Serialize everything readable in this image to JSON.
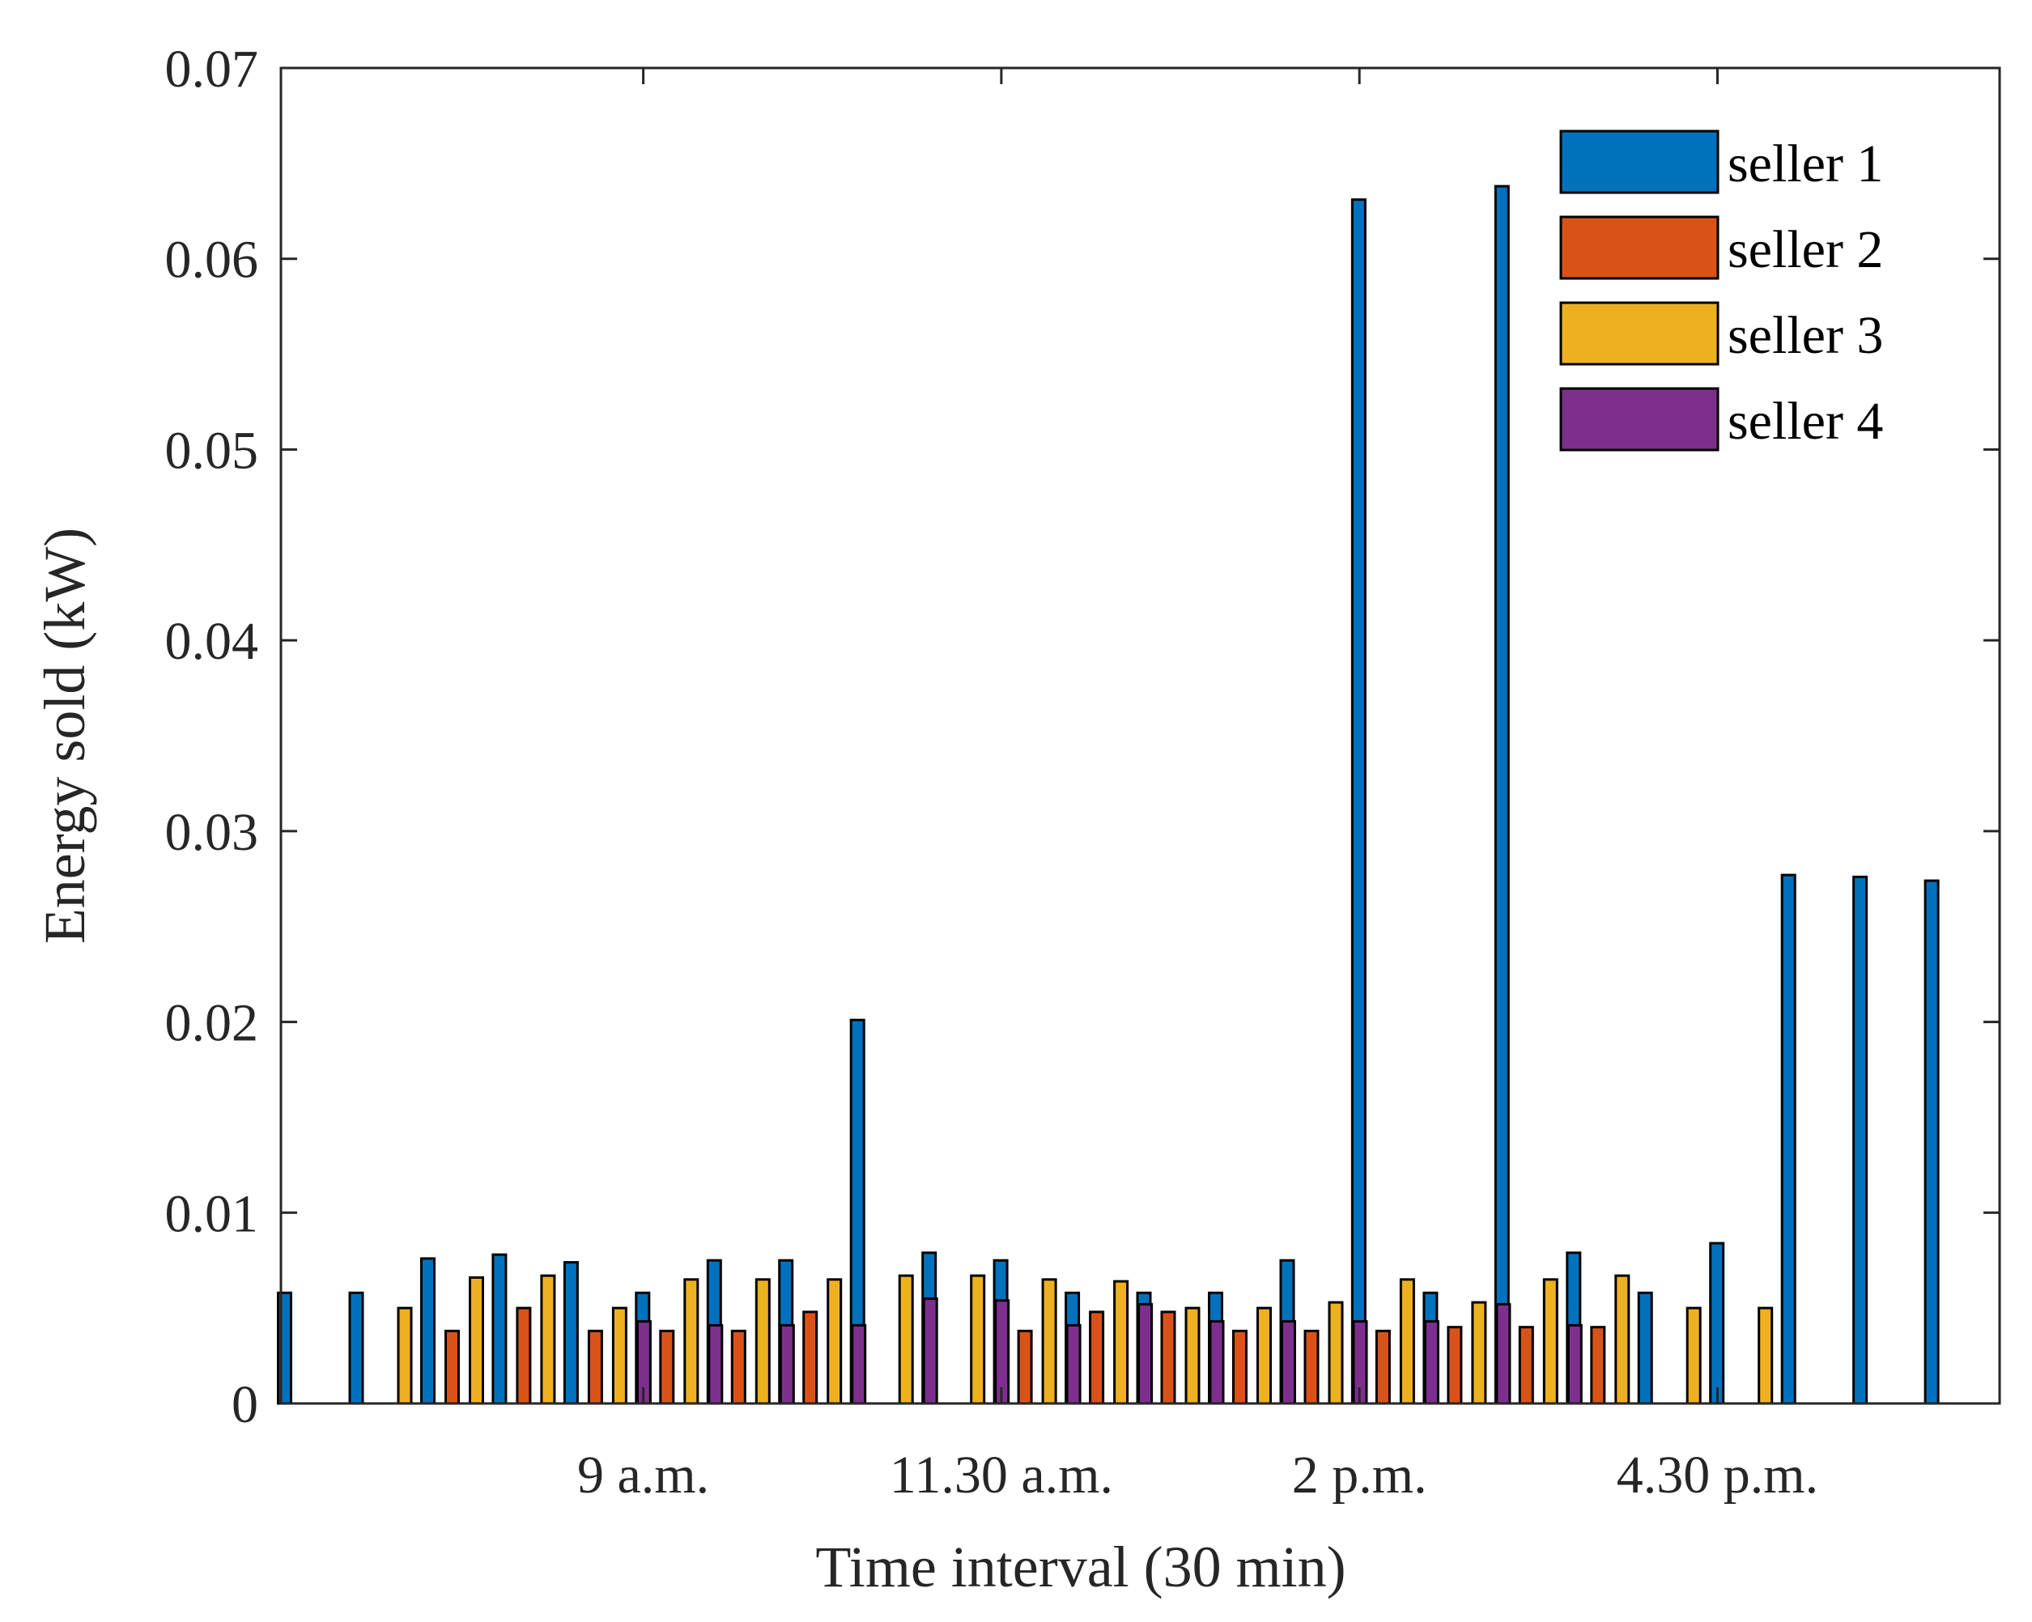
{
  "chart_data": {
    "type": "bar",
    "xlabel": "Time interval (30 min)",
    "ylabel": "Energy sold (kW)",
    "ylim": [
      0,
      0.07
    ],
    "yticks": [
      "0",
      "0.01",
      "0.02",
      "0.03",
      "0.04",
      "0.05",
      "0.06",
      "0.07"
    ],
    "xtick_labels": [
      {
        "label": "9 a.m.",
        "index": 4.5
      },
      {
        "label": "11.30 a.m.",
        "index": 9.5
      },
      {
        "label": "2 p.m.",
        "index": 14.5
      },
      {
        "label": "4.30 p.m.",
        "index": 19.5
      }
    ],
    "legend_position": "top-right",
    "n_intervals": 24,
    "series": [
      {
        "name": "seller 1",
        "color": "#0072BD",
        "values": [
          0.0058,
          0.0058,
          0.0076,
          0.0078,
          0.0074,
          0.0058,
          0.0075,
          0.0075,
          0.0201,
          0.0079,
          0.0075,
          0.0058,
          0.0058,
          0.0058,
          0.0075,
          0.0631,
          0.0058,
          0.0638,
          0.0079,
          0.0058,
          0.0084,
          0.0277,
          0.0276,
          0.0274
        ]
      },
      {
        "name": "seller 2",
        "color": "#D95319",
        "values": [
          0,
          0,
          0.0038,
          0.005,
          0.0038,
          0.0038,
          0.0038,
          0.0048,
          0,
          0,
          0.0038,
          0.0048,
          0.0048,
          0.0038,
          0.0038,
          0.0038,
          0.004,
          0.004,
          0.004,
          0,
          0,
          0,
          0,
          0
        ]
      },
      {
        "name": "seller 3",
        "color": "#EDB120",
        "values": [
          0,
          0.005,
          0.0066,
          0.0067,
          0.005,
          0.0065,
          0.0065,
          0.0065,
          0.0067,
          0.0067,
          0.0065,
          0.0064,
          0.005,
          0.005,
          0.0053,
          0.0065,
          0.0053,
          0.0065,
          0.0067,
          0.005,
          0.005,
          0,
          0,
          0
        ]
      },
      {
        "name": "seller 4",
        "color": "#7E2F8E",
        "values": [
          0,
          0,
          0,
          0,
          0.0043,
          0.0041,
          0.0041,
          0.0041,
          0.0055,
          0.0054,
          0.0041,
          0.0052,
          0.0043,
          0.0043,
          0.0043,
          0.0043,
          0.0052,
          0.0041,
          0,
          0,
          0,
          0,
          0,
          0
        ]
      }
    ]
  }
}
